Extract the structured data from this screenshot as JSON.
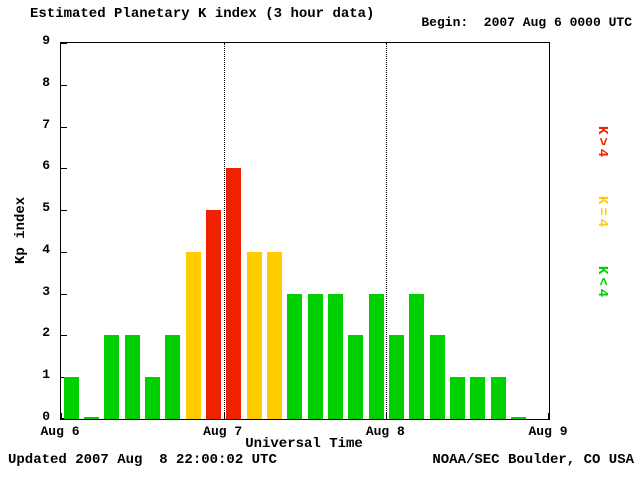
{
  "chart_data": {
    "type": "bar",
    "title": "Estimated Planetary K index (3 hour data)",
    "begin_label": "Begin:  2007 Aug 6 0000 UTC",
    "xlabel": "Universal Time",
    "ylabel": "Kp index",
    "ylim": [
      0,
      9
    ],
    "y_ticks": [
      0,
      1,
      2,
      3,
      4,
      5,
      6,
      7,
      8,
      9
    ],
    "x_tick_labels": [
      "Aug 6",
      "Aug 7",
      "Aug 8",
      "Aug 9"
    ],
    "bins_per_day": 8,
    "bin_hours": 3,
    "values": [
      1,
      0,
      2,
      2,
      1,
      2,
      4,
      5,
      6,
      4,
      4,
      3,
      3,
      3,
      2,
      3,
      2,
      3,
      2,
      1,
      1,
      1,
      0
    ],
    "colors": {
      "green": "#00cf00",
      "yellow": "#ffcc00",
      "red": "#ee2200"
    },
    "legend": [
      {
        "label": "K>4",
        "level": "red"
      },
      {
        "label": "K=4",
        "level": "yellow"
      },
      {
        "label": "K<4",
        "level": "green"
      }
    ],
    "legend_position": "right",
    "grid": "vertical dotted lines at day boundaries",
    "updated": "Updated 2007 Aug  8 22:00:02 UTC",
    "credit": "NOAA/SEC Boulder, CO USA"
  }
}
